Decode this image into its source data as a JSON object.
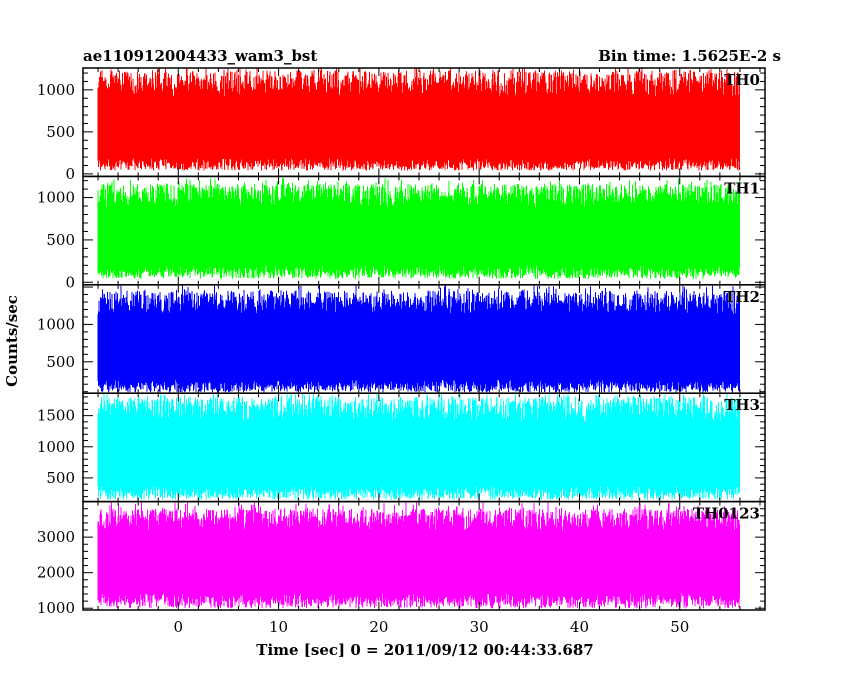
{
  "chart_data": {
    "type": "line",
    "title": "ae110912004433_wam3_bst",
    "subtitle": "Bin time: 1.5625E-2 s",
    "xlabel": "Time [sec] 0 = 2011/09/12 00:44:33.687",
    "ylabel": "Counts/sec",
    "xlim": [
      -9.5,
      58.5
    ],
    "x_ticks": [
      0,
      10,
      20,
      30,
      40,
      50
    ],
    "x_tick_labels": [
      "0",
      "10",
      "20",
      "30",
      "40",
      "50"
    ],
    "data_x_range": [
      -8.0,
      56.0
    ],
    "grid": false,
    "panels": [
      {
        "name": "TH0",
        "color": "#ff0000",
        "ylim": [
          -30,
          1260
        ],
        "y_ticks": [
          0,
          500,
          1000
        ],
        "y_tick_labels": [
          "0",
          "500",
          "1000"
        ],
        "low_band": [
          40,
          190
        ],
        "high_band": [
          920,
          1230
        ],
        "peak_max": 1260
      },
      {
        "name": "TH1",
        "color": "#00ff00",
        "ylim": [
          -30,
          1250
        ],
        "y_ticks": [
          0,
          500,
          1000
        ],
        "y_tick_labels": [
          "0",
          "500",
          "1000"
        ],
        "low_band": [
          40,
          200
        ],
        "high_band": [
          880,
          1160
        ],
        "peak_max": 1230
      },
      {
        "name": "TH2",
        "color": "#0000ff",
        "ylim": [
          80,
          1530
        ],
        "y_ticks": [
          500,
          1000
        ],
        "y_tick_labels": [
          "500",
          "1000"
        ],
        "low_band": [
          90,
          260
        ],
        "high_band": [
          1130,
          1450
        ],
        "peak_max": 1530
      },
      {
        "name": "TH3",
        "color": "#00ffff",
        "ylim": [
          120,
          1860
        ],
        "y_ticks": [
          500,
          1000,
          1500
        ],
        "y_tick_labels": [
          "500",
          "1000",
          "1500"
        ],
        "low_band": [
          150,
          380
        ],
        "high_band": [
          1400,
          1800
        ],
        "peak_max": 1860
      },
      {
        "name": "TH0123",
        "color": "#ff00ff",
        "ylim": [
          950,
          4000
        ],
        "y_ticks": [
          1000,
          2000,
          3000
        ],
        "y_tick_labels": [
          "1000",
          "2000",
          "3000"
        ],
        "low_band": [
          1000,
          1450
        ],
        "high_band": [
          3150,
          3800
        ],
        "peak_max": 3990
      }
    ]
  }
}
